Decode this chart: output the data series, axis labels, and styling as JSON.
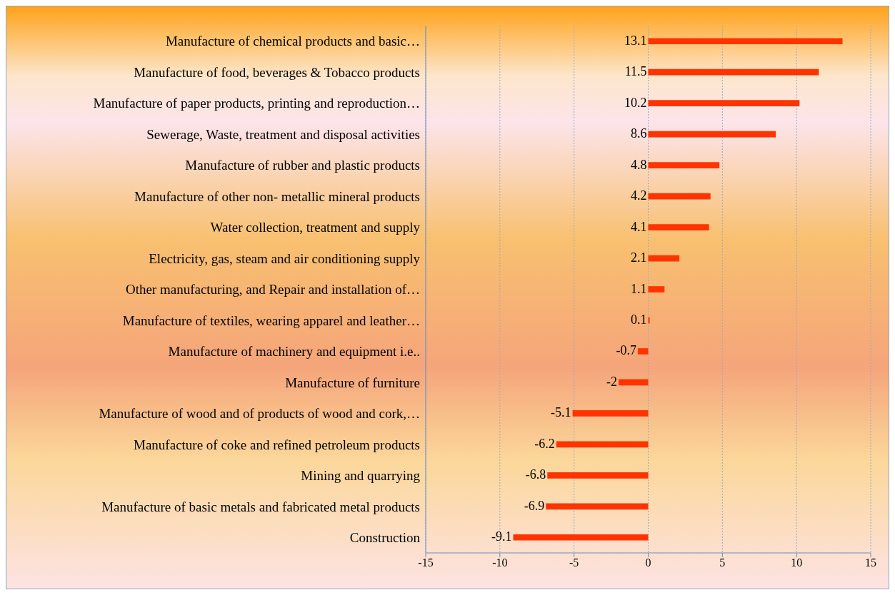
{
  "chart_data": {
    "type": "bar",
    "orientation": "horizontal",
    "categories": [
      "Manufacture of chemical products and basic…",
      "Manufacture of food, beverages & Tobacco products",
      "Manufacture of paper products, printing and reproduction…",
      "Sewerage, Waste, treatment and disposal activities",
      "Manufacture of rubber and plastic products",
      "Manufacture of other non- metallic mineral products",
      "Water collection, treatment and supply",
      "Electricity, gas, steam and air conditioning supply",
      "Other manufacturing, and Repair and installation of…",
      "Manufacture of textiles, wearing apparel and leather…",
      "Manufacture of machinery and equipment i.e..",
      "Manufacture of furniture",
      "Manufacture of wood and of products of wood and cork,…",
      "Manufacture of coke and refined petroleum products",
      "Mining and quarrying",
      "Manufacture of basic metals and fabricated metal products",
      "Construction"
    ],
    "values": [
      13.1,
      11.5,
      10.2,
      8.6,
      4.8,
      4.2,
      4.1,
      2.1,
      1.1,
      0.1,
      -0.7,
      -2,
      -5.1,
      -6.2,
      -6.8,
      -6.9,
      -9.1
    ],
    "color": "#ff3300",
    "xlim": [
      -15,
      15
    ],
    "xticks": [
      -15,
      -10,
      -5,
      0,
      5,
      10,
      15
    ],
    "grid": "x",
    "data_labels": true
  }
}
